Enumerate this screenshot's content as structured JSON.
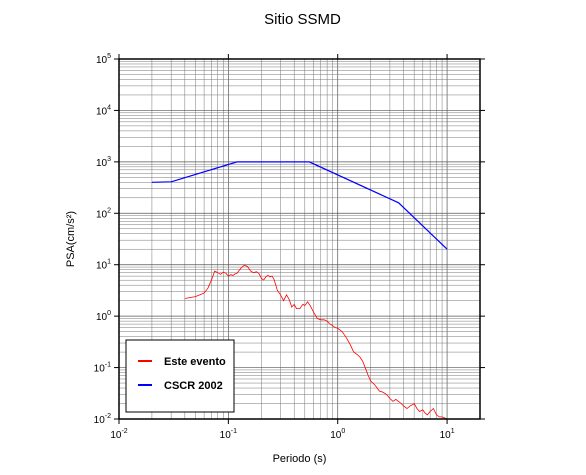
{
  "chart_data": {
    "type": "line",
    "title": "Sitio SSMD",
    "xlabel": "Periodo (s)",
    "ylabel": "PSA(cm/s²)",
    "xscale": "log",
    "yscale": "log",
    "xlim": [
      0.01,
      20
    ],
    "ylim": [
      0.01,
      100000
    ],
    "grid": true,
    "legend_position": "bottom-left",
    "x_tick_labels": [
      {
        "base": "10",
        "exp": "-2"
      },
      {
        "base": "10",
        "exp": "-1"
      },
      {
        "base": "10",
        "exp": "0"
      },
      {
        "base": "10",
        "exp": "1"
      }
    ],
    "y_tick_labels": [
      {
        "base": "10",
        "exp": "-2"
      },
      {
        "base": "10",
        "exp": "-1"
      },
      {
        "base": "10",
        "exp": "0"
      },
      {
        "base": "10",
        "exp": "1"
      },
      {
        "base": "10",
        "exp": "2"
      },
      {
        "base": "10",
        "exp": "3"
      },
      {
        "base": "10",
        "exp": "4"
      },
      {
        "base": "10",
        "exp": "5"
      }
    ],
    "series": [
      {
        "name": "Este evento",
        "color": "#ff0000",
        "x": [
          0.04,
          0.045,
          0.05,
          0.055,
          0.06,
          0.065,
          0.07,
          0.075,
          0.08,
          0.085,
          0.09,
          0.095,
          0.1,
          0.105,
          0.11,
          0.115,
          0.12,
          0.13,
          0.14,
          0.15,
          0.16,
          0.17,
          0.18,
          0.19,
          0.2,
          0.21,
          0.22,
          0.23,
          0.24,
          0.25,
          0.26,
          0.27,
          0.28,
          0.3,
          0.32,
          0.34,
          0.36,
          0.38,
          0.4,
          0.42,
          0.45,
          0.48,
          0.5,
          0.53,
          0.56,
          0.6,
          0.65,
          0.7,
          0.75,
          0.8,
          0.85,
          0.9,
          0.95,
          1.0,
          1.1,
          1.2,
          1.3,
          1.4,
          1.5,
          1.6,
          1.7,
          1.8,
          1.9,
          2.0,
          2.2,
          2.4,
          2.6,
          2.8,
          3.0,
          3.2,
          3.4,
          3.6,
          3.8,
          4.0,
          4.3,
          4.6,
          5.0,
          5.3,
          5.6,
          6.0,
          6.3,
          6.6,
          7.0,
          7.5,
          8.0,
          8.5,
          9.0,
          10.0
        ],
        "y": [
          2.2,
          2.3,
          2.4,
          2.6,
          2.8,
          3.5,
          5.0,
          7.5,
          7.0,
          6.5,
          7.2,
          6.8,
          6.0,
          6.4,
          6.2,
          6.6,
          6.8,
          8.5,
          9.8,
          9.2,
          7.5,
          7.0,
          7.3,
          6.8,
          5.5,
          5.0,
          5.8,
          6.2,
          5.8,
          6.0,
          5.4,
          4.2,
          3.2,
          2.6,
          2.0,
          2.6,
          2.1,
          1.5,
          1.7,
          1.4,
          1.4,
          1.7,
          1.6,
          1.9,
          1.6,
          1.2,
          0.9,
          0.85,
          0.85,
          0.8,
          0.7,
          0.65,
          0.6,
          0.58,
          0.5,
          0.38,
          0.28,
          0.2,
          0.18,
          0.16,
          0.13,
          0.095,
          0.07,
          0.055,
          0.045,
          0.035,
          0.033,
          0.03,
          0.025,
          0.022,
          0.024,
          0.022,
          0.02,
          0.018,
          0.016,
          0.018,
          0.02,
          0.016,
          0.014,
          0.015,
          0.013,
          0.012,
          0.014,
          0.016,
          0.012,
          0.011,
          0.011,
          0.01
        ]
      },
      {
        "name": "CSCR 2002",
        "color": "#0000ff",
        "x": [
          0.02,
          0.03,
          0.12,
          0.55,
          3.6,
          10.0
        ],
        "y": [
          400,
          410,
          1000,
          1000,
          160,
          20
        ]
      }
    ]
  }
}
